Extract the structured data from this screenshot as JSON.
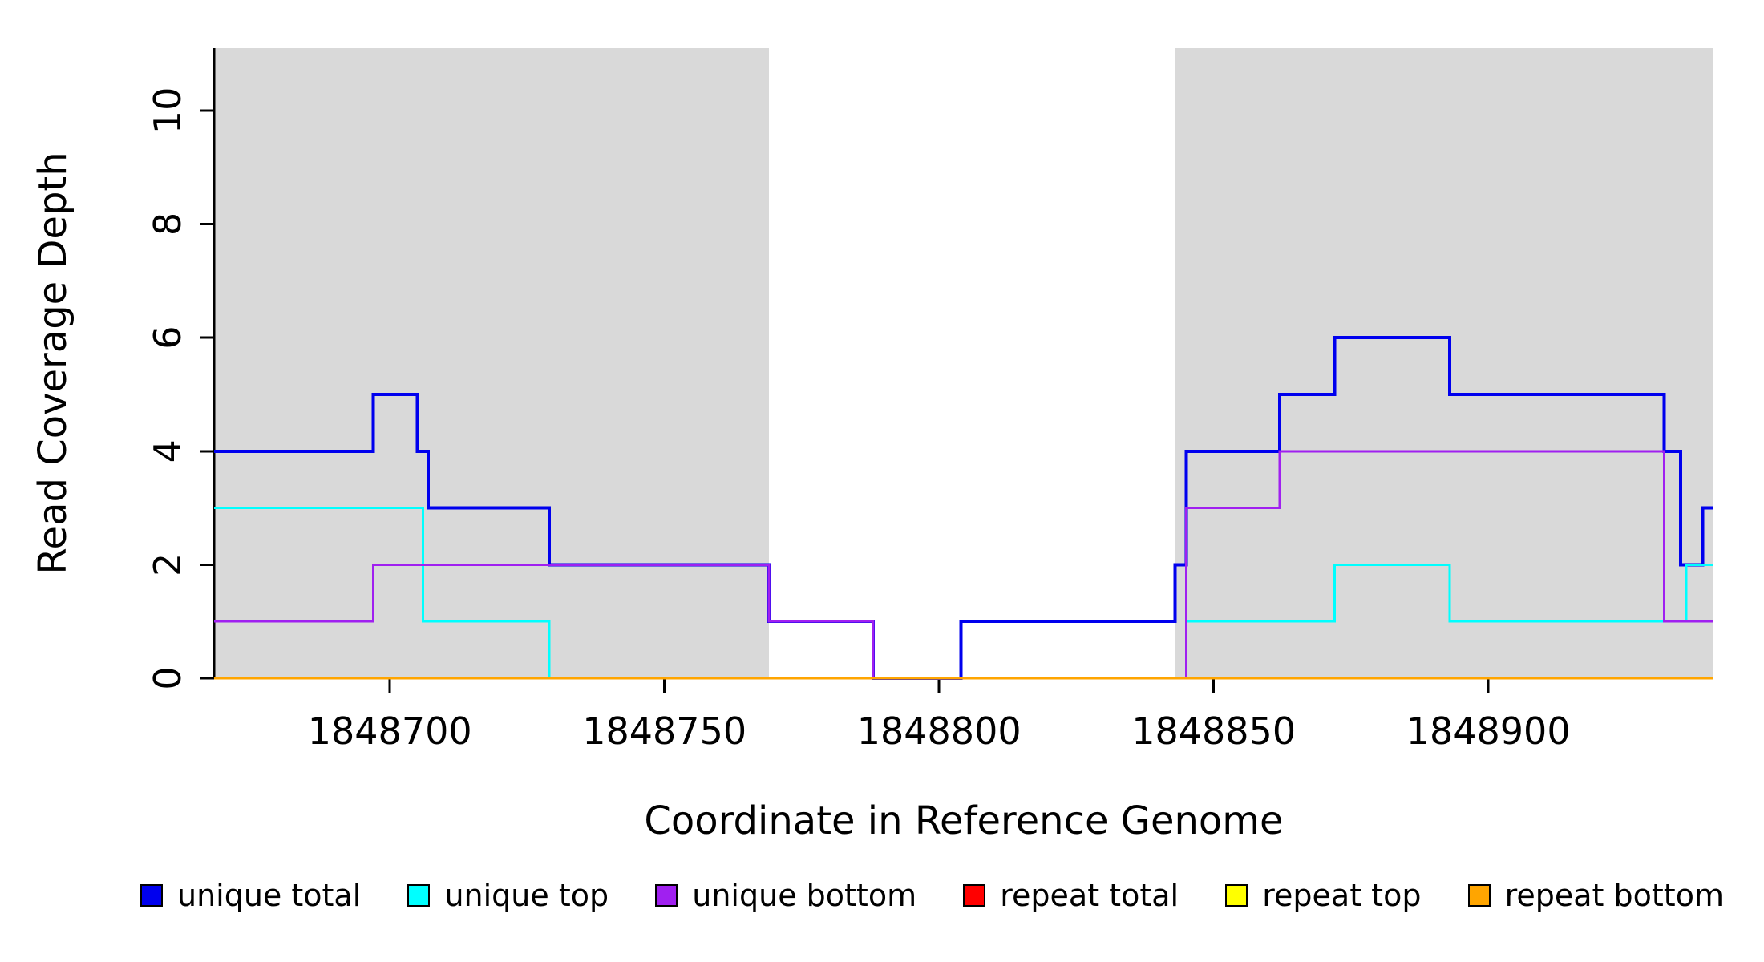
{
  "figure": {
    "xlabel": "Coordinate in Reference Genome",
    "ylabel": "Read Coverage Depth"
  },
  "chart_data": {
    "type": "line",
    "subtype": "step-coverage-depth",
    "title": "",
    "xlabel": "Coordinate in Reference Genome",
    "ylabel": "Read Coverage Depth",
    "xlim": [
      1848668,
      1848941
    ],
    "ylim": [
      0,
      11.1
    ],
    "x_ticks": [
      1848700,
      1848750,
      1848800,
      1848850,
      1848900
    ],
    "y_ticks": [
      0,
      2,
      4,
      6,
      8,
      10
    ],
    "grid": false,
    "legend_position": "bottom",
    "shaded_regions": [
      {
        "x0": 1848668,
        "x1": 1848769,
        "color": "#d9d9d9"
      },
      {
        "x0": 1848843,
        "x1": 1848941,
        "color": "#d9d9d9"
      }
    ],
    "series": [
      {
        "name": "unique total",
        "color": "#0000EE",
        "segments": [
          [
            1848668,
            1848697,
            4
          ],
          [
            1848697,
            1848705,
            5
          ],
          [
            1848705,
            1848707,
            4
          ],
          [
            1848707,
            1848729,
            3
          ],
          [
            1848729,
            1848769,
            2
          ],
          [
            1848769,
            1848788,
            1
          ],
          [
            1848788,
            1848804,
            0
          ],
          [
            1848804,
            1848843,
            1
          ],
          [
            1848843,
            1848845,
            2
          ],
          [
            1848845,
            1848862,
            4
          ],
          [
            1848862,
            1848872,
            5
          ],
          [
            1848872,
            1848893,
            6
          ],
          [
            1848893,
            1848932,
            5
          ],
          [
            1848932,
            1848935,
            4
          ],
          [
            1848935,
            1848939,
            2
          ],
          [
            1848939,
            1848941,
            3
          ]
        ]
      },
      {
        "name": "unique top",
        "color": "#00FFFF",
        "segments": [
          [
            1848668,
            1848706,
            3
          ],
          [
            1848706,
            1848729,
            1
          ],
          [
            1848729,
            1848845,
            0
          ],
          [
            1848845,
            1848872,
            1
          ],
          [
            1848872,
            1848893,
            2
          ],
          [
            1848893,
            1848936,
            1
          ],
          [
            1848936,
            1848941,
            2
          ]
        ]
      },
      {
        "name": "unique bottom",
        "color": "#A020F0",
        "segments": [
          [
            1848668,
            1848697,
            1
          ],
          [
            1848697,
            1848769,
            2
          ],
          [
            1848769,
            1848788,
            1
          ],
          [
            1848788,
            1848845,
            0
          ],
          [
            1848845,
            1848862,
            3
          ],
          [
            1848862,
            1848932,
            4
          ],
          [
            1848932,
            1848941,
            1
          ]
        ]
      },
      {
        "name": "repeat total",
        "color": "#FF0000",
        "segments": [
          [
            1848668,
            1848941,
            0
          ]
        ]
      },
      {
        "name": "repeat top",
        "color": "#FFFF00",
        "segments": [
          [
            1848668,
            1848941,
            0
          ]
        ]
      },
      {
        "name": "repeat bottom",
        "color": "#FFA500",
        "segments": [
          [
            1848668,
            1848941,
            0
          ]
        ]
      }
    ]
  },
  "legend": {
    "items": [
      {
        "label": "unique total",
        "color": "#0000EE"
      },
      {
        "label": "unique top",
        "color": "#00FFFF"
      },
      {
        "label": "unique bottom",
        "color": "#A020F0"
      },
      {
        "label": "repeat total",
        "color": "#FF0000"
      },
      {
        "label": "repeat top",
        "color": "#FFFF00"
      },
      {
        "label": "repeat bottom",
        "color": "#FFA500"
      }
    ]
  }
}
